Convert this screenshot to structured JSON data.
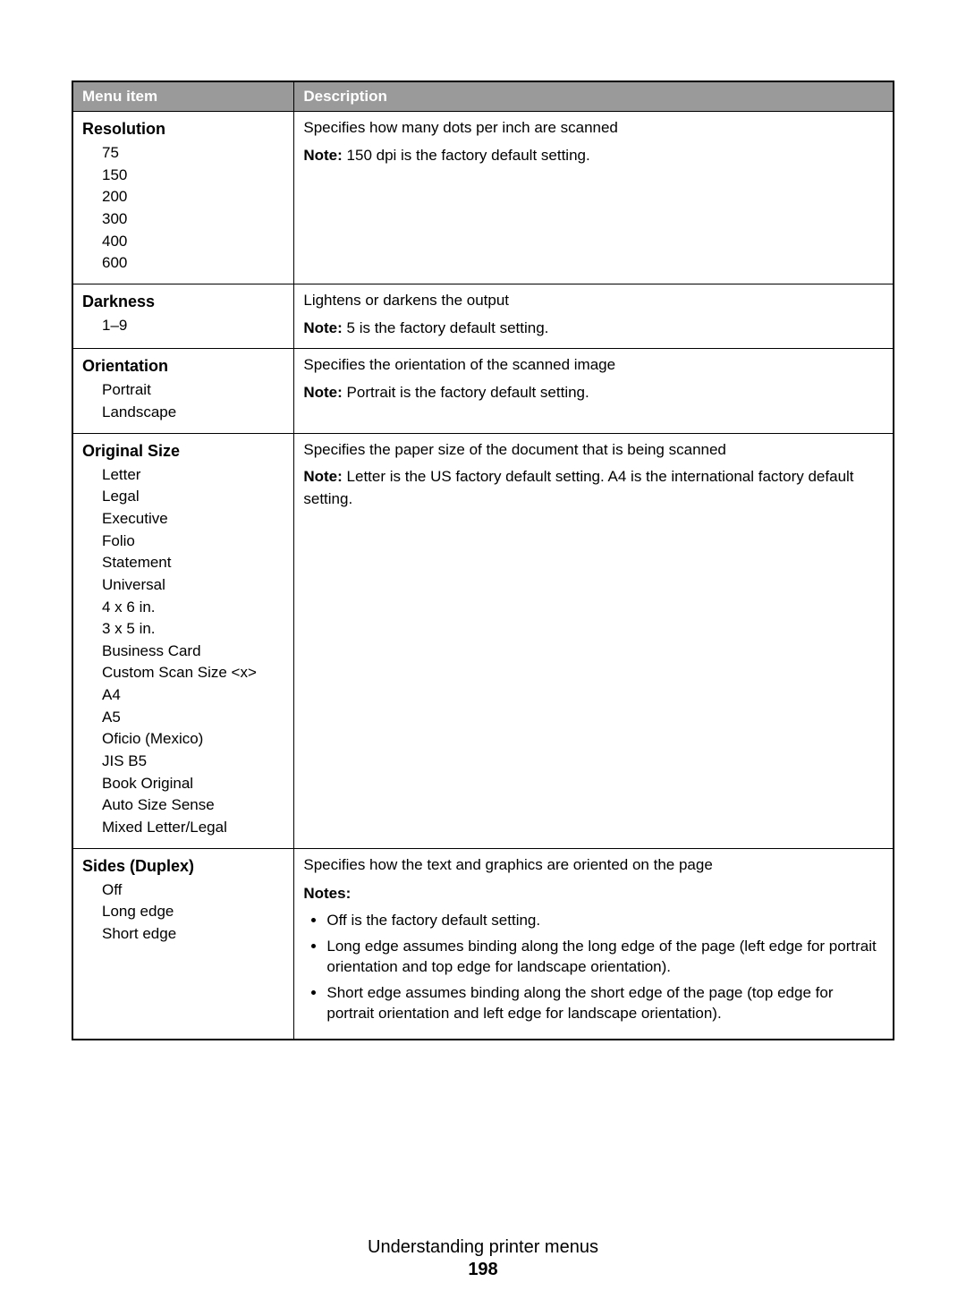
{
  "table": {
    "header": {
      "menu": "Menu item",
      "desc": "Description"
    },
    "column_widths_pct": [
      27,
      73
    ],
    "header_bg": "#9a9a9a",
    "header_fg": "#ffffff",
    "border_color": "#000000",
    "font_size_pt": 13,
    "rows": [
      {
        "title": "Resolution",
        "options": [
          "75",
          "150",
          "200",
          "300",
          "400",
          "600"
        ],
        "desc": "Specifies how many dots per inch are scanned",
        "note_label": "Note:",
        "note": " 150 dpi is the factory default setting."
      },
      {
        "title": "Darkness",
        "options": [
          "1–9"
        ],
        "desc": "Lightens or darkens the output",
        "note_label": "Note:",
        "note": " 5 is the factory default setting."
      },
      {
        "title": "Orientation",
        "options": [
          "Portrait",
          "Landscape"
        ],
        "desc": "Specifies the orientation of the scanned image",
        "note_label": "Note:",
        "note": " Portrait is the factory default setting."
      },
      {
        "title": "Original Size",
        "options": [
          "Letter",
          "Legal",
          "Executive",
          "Folio",
          "Statement",
          "Universal",
          "4 x 6 in.",
          "3 x 5 in.",
          "Business Card",
          "Custom Scan Size <x>",
          "A4",
          "A5",
          "Oficio (Mexico)",
          "JIS B5",
          "Book Original",
          "Auto Size Sense",
          "Mixed Letter/Legal"
        ],
        "desc": "Specifies the paper size of the document that is being scanned",
        "note_label": "Note:",
        "note": " Letter is the US factory default setting. A4 is the international factory default setting."
      },
      {
        "title": "Sides (Duplex)",
        "options": [
          "Off",
          "Long edge",
          "Short edge"
        ],
        "desc": "Specifies how the text and graphics are oriented on the page",
        "notes_heading": "Notes:",
        "notes_list": [
          "Off is the factory default setting.",
          "Long edge assumes binding along the long edge of the page (left edge for portrait orientation and top edge for landscape orientation).",
          "Short edge assumes binding along the short edge of the page (top edge for portrait orientation and left edge for landscape orientation)."
        ]
      }
    ]
  },
  "footer": {
    "title": "Understanding printer menus",
    "page": "198"
  }
}
